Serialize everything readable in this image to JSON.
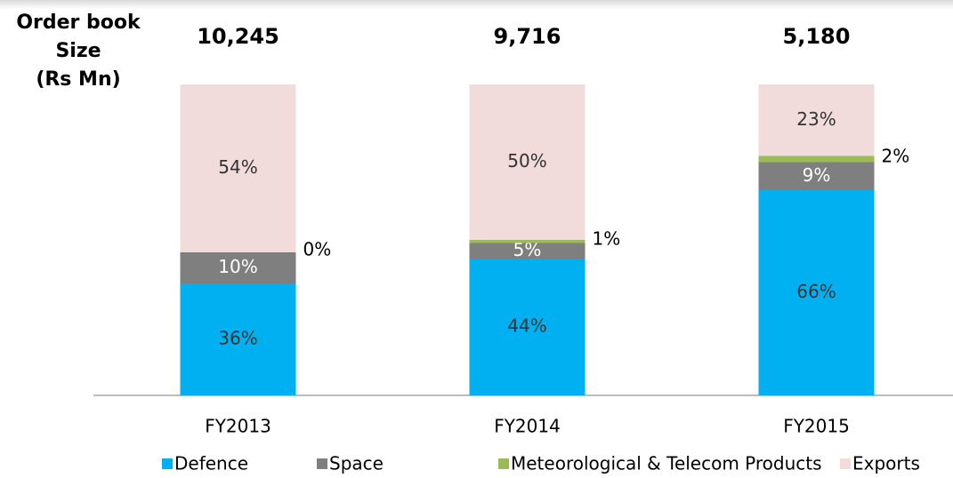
{
  "chart_data": {
    "type": "stacked_bar",
    "title": [
      "Order book",
      "Size",
      "(Rs Mn)"
    ],
    "categories": [
      "FY2013",
      "FY2014",
      "FY2015"
    ],
    "totals": {
      "values": [
        10245,
        9716,
        5180
      ],
      "value_labels": [
        "10,245",
        "9,716",
        "5,180"
      ]
    },
    "series": [
      {
        "name": "Defence",
        "color": "#00b0f0",
        "values": [
          36,
          44,
          66
        ],
        "value_labels": [
          "36%",
          "44%",
          "66%"
        ]
      },
      {
        "name": "Space",
        "color": "#7f7f7f",
        "values": [
          10,
          5,
          9
        ],
        "value_labels": [
          "10%",
          "5%",
          "9%"
        ]
      },
      {
        "name": "Meteorological & Telecom Products",
        "color": "#9bbb59",
        "values": [
          0,
          1,
          2
        ],
        "value_labels": [
          "0%",
          "1%",
          "2%"
        ]
      },
      {
        "name": "Exports",
        "color": "#f2dcdb",
        "values": [
          54,
          50,
          23
        ],
        "value_labels": [
          "54%",
          "50%",
          "23%"
        ]
      }
    ],
    "ylim": [
      0,
      100
    ],
    "legend": "bottom"
  }
}
